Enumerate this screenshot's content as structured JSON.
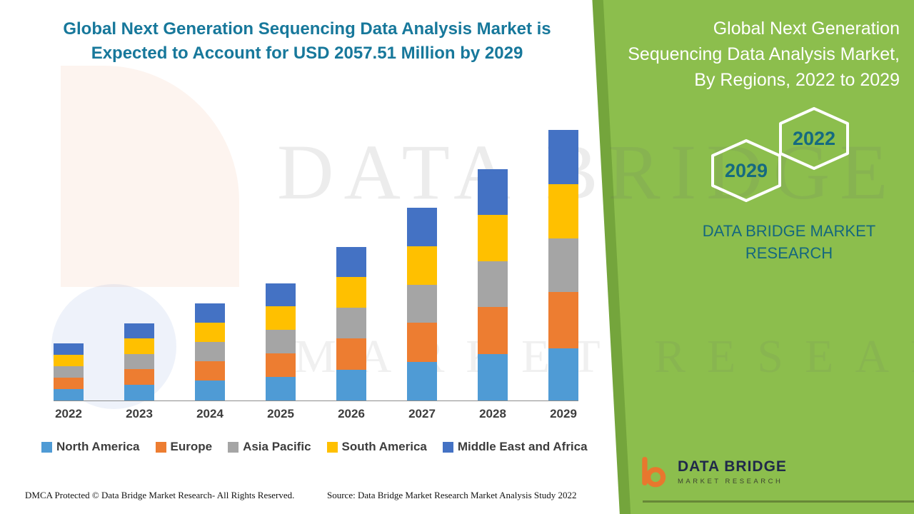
{
  "header": {
    "title_line1": "Global Next Generation Sequencing Data Analysis Market is",
    "title_line2": "Expected to Account for USD 2057.51 Million by 2029"
  },
  "side_panel": {
    "title": "Global Next Generation Sequencing Data Analysis Market, By Regions, 2022 to 2029",
    "hexagon_back": "2029",
    "hexagon_front": "2022",
    "brand": "DATA BRIDGE MARKET RESEARCH"
  },
  "watermark": {
    "line1": "DATA BRIDGE",
    "line2": "MARKET RESEARCH"
  },
  "chart_data": {
    "type": "bar",
    "stacked": true,
    "title": "Global Next Generation Sequencing Data Analysis Market is Expected to Account for USD 2057.51 Million by 2029",
    "unit": "USD Million",
    "categories": [
      "2022",
      "2023",
      "2024",
      "2025",
      "2026",
      "2027",
      "2028",
      "2029"
    ],
    "series": [
      {
        "name": "North America",
        "color": "#4F9BD5",
        "values": [
          88,
          119,
          150,
          180,
          236,
          295,
          355,
          397.51
        ]
      },
      {
        "name": "Europe",
        "color": "#ED7D31",
        "values": [
          88,
          118,
          149,
          180,
          236,
          295,
          355,
          430
        ]
      },
      {
        "name": "Asia Pacific",
        "color": "#A5A5A5",
        "values": [
          87,
          118,
          148,
          178,
          234,
          292,
          350,
          408
        ]
      },
      {
        "name": "South America",
        "color": "#FFC000",
        "values": [
          86,
          117,
          147,
          178,
          232,
          292,
          350,
          408
        ]
      },
      {
        "name": "Middle East and Africa",
        "color": "#4472C4",
        "values": [
          86,
          116,
          146,
          177,
          232,
          290,
          348,
          414
        ]
      }
    ],
    "totals": [
      435,
      588,
      740,
      893,
      1170,
      1464,
      1758,
      2057.51
    ],
    "ylim": [
      0,
      2200
    ],
    "legend_position": "bottom",
    "grid": false
  },
  "footer": {
    "dmca": "DMCA Protected © Data Bridge Market Research- All Rights Reserved.",
    "source": "Source: Data Bridge Market Research Market Analysis Study 2022",
    "logo_name": "DATA BRIDGE",
    "logo_tagline": "MARKET RESEARCH"
  },
  "colors": {
    "panel_green": "#8CBE4D",
    "panel_green_dark": "#74A53C",
    "title_teal": "#17789B",
    "brand_teal": "#15677E",
    "hexagon_text": "#156A80",
    "axis_text": "#3d3d3d"
  }
}
